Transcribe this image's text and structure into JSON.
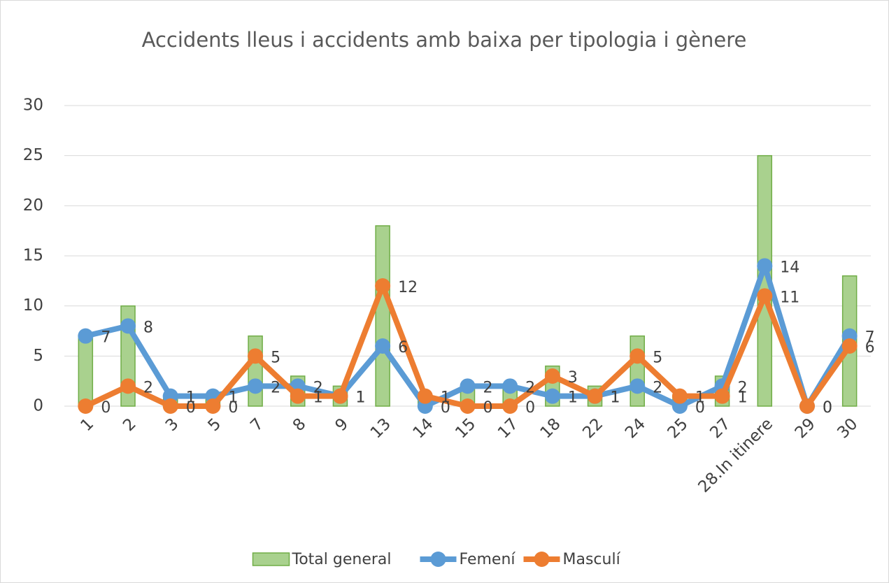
{
  "chart_data": {
    "type": "bar-line",
    "title": "Accidents lleus i accidents amb baixa per tipologia i gènere",
    "categories": [
      "1",
      "2",
      "3",
      "5",
      "7",
      "8",
      "9",
      "13",
      "14",
      "15",
      "17",
      "18",
      "22",
      "24",
      "25",
      "27",
      "28.In itinere",
      "29",
      "30"
    ],
    "series": [
      {
        "name": "Total general",
        "type": "bar",
        "color": "#a9d18e",
        "values": [
          7,
          10,
          1,
          1,
          7,
          3,
          2,
          18,
          1,
          2,
          2,
          4,
          2,
          7,
          1,
          3,
          25,
          0,
          13
        ]
      },
      {
        "name": "Femení",
        "type": "line",
        "color": "#5b9bd5",
        "values": [
          7,
          8,
          1,
          1,
          2,
          2,
          1,
          6,
          0,
          2,
          2,
          1,
          1,
          2,
          0,
          2,
          14,
          0,
          7
        ]
      },
      {
        "name": "Masculí",
        "type": "line",
        "color": "#ed7d31",
        "values": [
          0,
          2,
          0,
          0,
          5,
          1,
          1,
          12,
          1,
          0,
          0,
          3,
          1,
          5,
          1,
          1,
          11,
          0,
          6
        ]
      }
    ],
    "ylim": [
      0,
      30
    ],
    "yticks": [
      0,
      5,
      10,
      15,
      20,
      25,
      30
    ],
    "grid": true,
    "legend": "bottom"
  }
}
